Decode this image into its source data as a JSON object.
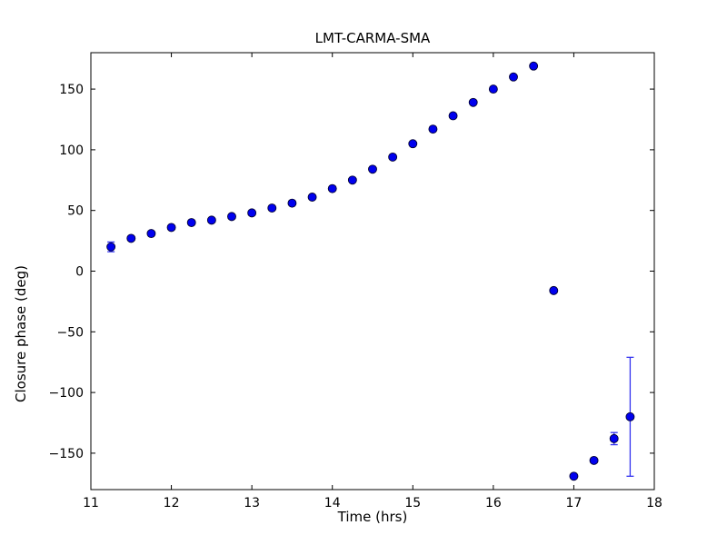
{
  "figure": {
    "background": "#ffffff"
  },
  "chart_data": {
    "type": "scatter",
    "title": "LMT-CARMA-SMA",
    "xlabel": "Time (hrs)",
    "ylabel": "Closure phase (deg)",
    "xlim": [
      11,
      18
    ],
    "ylim": [
      -180,
      180
    ],
    "xticks": [
      11,
      12,
      13,
      14,
      15,
      16,
      17,
      18
    ],
    "yticks": [
      -150,
      -100,
      -50,
      0,
      50,
      100,
      150
    ],
    "grid": false,
    "legend": "none",
    "marker_color": "#0000ee",
    "marker_edge_color": "#000033",
    "errorbar_color": "#3333f0",
    "axis_color": "#000000",
    "series": [
      {
        "name": "closure phase",
        "points": [
          {
            "t": 11.25,
            "phase": 20,
            "err": 4
          },
          {
            "t": 11.5,
            "phase": 27,
            "err": 0
          },
          {
            "t": 11.75,
            "phase": 31,
            "err": 0
          },
          {
            "t": 12.0,
            "phase": 36,
            "err": 0
          },
          {
            "t": 12.25,
            "phase": 40,
            "err": 0
          },
          {
            "t": 12.5,
            "phase": 42,
            "err": 0
          },
          {
            "t": 12.75,
            "phase": 45,
            "err": 0
          },
          {
            "t": 13.0,
            "phase": 48,
            "err": 0
          },
          {
            "t": 13.25,
            "phase": 52,
            "err": 0
          },
          {
            "t": 13.5,
            "phase": 56,
            "err": 0
          },
          {
            "t": 13.75,
            "phase": 61,
            "err": 0
          },
          {
            "t": 14.0,
            "phase": 68,
            "err": 0
          },
          {
            "t": 14.25,
            "phase": 75,
            "err": 0
          },
          {
            "t": 14.5,
            "phase": 84,
            "err": 0
          },
          {
            "t": 14.75,
            "phase": 94,
            "err": 0
          },
          {
            "t": 15.0,
            "phase": 105,
            "err": 0
          },
          {
            "t": 15.25,
            "phase": 117,
            "err": 0
          },
          {
            "t": 15.5,
            "phase": 128,
            "err": 0
          },
          {
            "t": 15.75,
            "phase": 139,
            "err": 0
          },
          {
            "t": 16.0,
            "phase": 150,
            "err": 0
          },
          {
            "t": 16.25,
            "phase": 160,
            "err": 0
          },
          {
            "t": 16.5,
            "phase": 169,
            "err": 0
          },
          {
            "t": 16.75,
            "phase": -16,
            "err": 0
          },
          {
            "t": 17.0,
            "phase": -169,
            "err": 0
          },
          {
            "t": 17.25,
            "phase": -156,
            "err": 0
          },
          {
            "t": 17.5,
            "phase": -138,
            "err": 5
          },
          {
            "t": 17.7,
            "phase": -120,
            "err": 49
          }
        ]
      }
    ]
  }
}
